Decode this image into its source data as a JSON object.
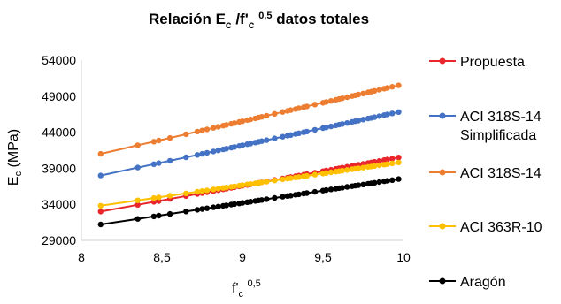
{
  "chart_data": {
    "type": "scatter",
    "title": {
      "main": "Relación E",
      "sub1": "c",
      "mid": " /f'",
      "sub2": "c",
      "sup": "0,5",
      "rest": " datos totales"
    },
    "xlabel": {
      "main": "f'",
      "sub": "c",
      "sup": "0,5"
    },
    "ylabel": {
      "main": "E",
      "sub": "c",
      "rest": " (MPa)"
    },
    "xlim": [
      8,
      10
    ],
    "ylim": [
      29000,
      54000
    ],
    "x_ticks": [
      8,
      8.5,
      9,
      9.5,
      10
    ],
    "x_tick_labels": [
      "8",
      "8,5",
      "9",
      "9,5",
      "10"
    ],
    "y_ticks": [
      29000,
      34000,
      39000,
      44000,
      49000,
      54000
    ],
    "y_tick_labels": [
      "29000",
      "34000",
      "39000",
      "44000",
      "49000",
      "54000"
    ],
    "grid": false,
    "legend_position": "right",
    "x_points": [
      8.12,
      8.35,
      8.45,
      8.48,
      8.55,
      8.65,
      8.72,
      8.75,
      8.78,
      8.82,
      8.85,
      8.88,
      8.9,
      8.93,
      8.95,
      8.98,
      9.0,
      9.03,
      9.05,
      9.08,
      9.1,
      9.12,
      9.15,
      9.2,
      9.25,
      9.28,
      9.3,
      9.33,
      9.35,
      9.38,
      9.4,
      9.45,
      9.5,
      9.52,
      9.55,
      9.58,
      9.6,
      9.62,
      9.65,
      9.68,
      9.7,
      9.72,
      9.75,
      9.78,
      9.8,
      9.82,
      9.85,
      9.88,
      9.9,
      9.93,
      9.97
    ],
    "series": [
      {
        "name": "Propuesta",
        "color": "#e8262b",
        "y_start": 33000,
        "y_end": 40500
      },
      {
        "name": "ACI 318S-14 Simplificada",
        "color": "#4472c4",
        "y_start": 38000,
        "y_end": 46800
      },
      {
        "name": "ACI 318S-14",
        "color": "#ed7d31",
        "y_start": 41000,
        "y_end": 50500
      },
      {
        "name": "ACI 363R-10",
        "color": "#ffc000",
        "y_start": 33800,
        "y_end": 39800
      },
      {
        "name": "Aragón",
        "color": "#000000",
        "y_start": 31200,
        "y_end": 37500
      }
    ],
    "legend_lines": [
      [
        "Propuesta"
      ],
      [
        "ACI 318S-14",
        "Simplificada"
      ],
      [
        "ACI 318S-14"
      ],
      [
        "ACI 363R-10"
      ],
      [
        "Aragón"
      ]
    ]
  }
}
